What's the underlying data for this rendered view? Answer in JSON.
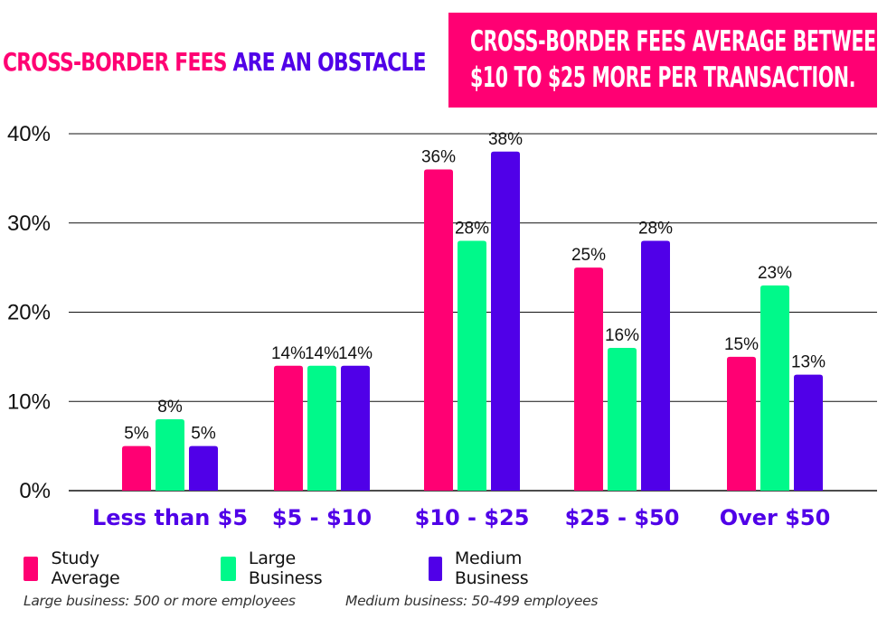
{
  "headline": {
    "part1": "CROSS-BORDER FEES",
    "part2": "ARE AN OBSTACLE"
  },
  "callout": {
    "line1": "CROSS-BORDER FEES AVERAGE BETWEEN",
    "line2": "$10 TO $25 MORE PER TRANSACTION."
  },
  "colors": {
    "pink": "#ff0073",
    "green": "#00f98a",
    "purple": "#5000e8"
  },
  "chart_data": {
    "type": "bar",
    "title": "CROSS-BORDER FEES ARE AN OBSTACLE",
    "xlabel": "",
    "ylabel": "",
    "ylim": [
      0,
      40
    ],
    "yticks": [
      0,
      10,
      20,
      30,
      40
    ],
    "ytick_labels": [
      "0%",
      "10%",
      "20%",
      "30%",
      "40%"
    ],
    "grid": true,
    "legend_position": "bottom-left",
    "categories": [
      "Less than $5",
      "$5 - $10",
      "$10 - $25",
      "$25 - $50",
      "Over $50"
    ],
    "series": [
      {
        "name": "Study Average",
        "color": "#ff0073",
        "values": [
          5,
          14,
          36,
          25,
          15
        ],
        "labels": [
          "5%",
          "14%",
          "36%",
          "25%",
          "15%"
        ]
      },
      {
        "name": "Large Business",
        "color": "#00f98a",
        "values": [
          8,
          14,
          28,
          16,
          23
        ],
        "labels": [
          "8%",
          "14%",
          "28%",
          "16%",
          "23%"
        ]
      },
      {
        "name": "Medium Business",
        "color": "#5000e8",
        "values": [
          5,
          14,
          38,
          28,
          13
        ],
        "labels": [
          "5%",
          "14%",
          "38%",
          "28%",
          "13%"
        ]
      }
    ]
  },
  "legend": {
    "items": [
      {
        "label": "Study Average",
        "color": "#ff0073"
      },
      {
        "label": "Large Business",
        "color": "#00f98a"
      },
      {
        "label": "Medium Business",
        "color": "#5000e8"
      }
    ]
  },
  "notes": {
    "large": "Large business: 500 or more employees",
    "medium": "Medium business: 50-499 employees"
  }
}
